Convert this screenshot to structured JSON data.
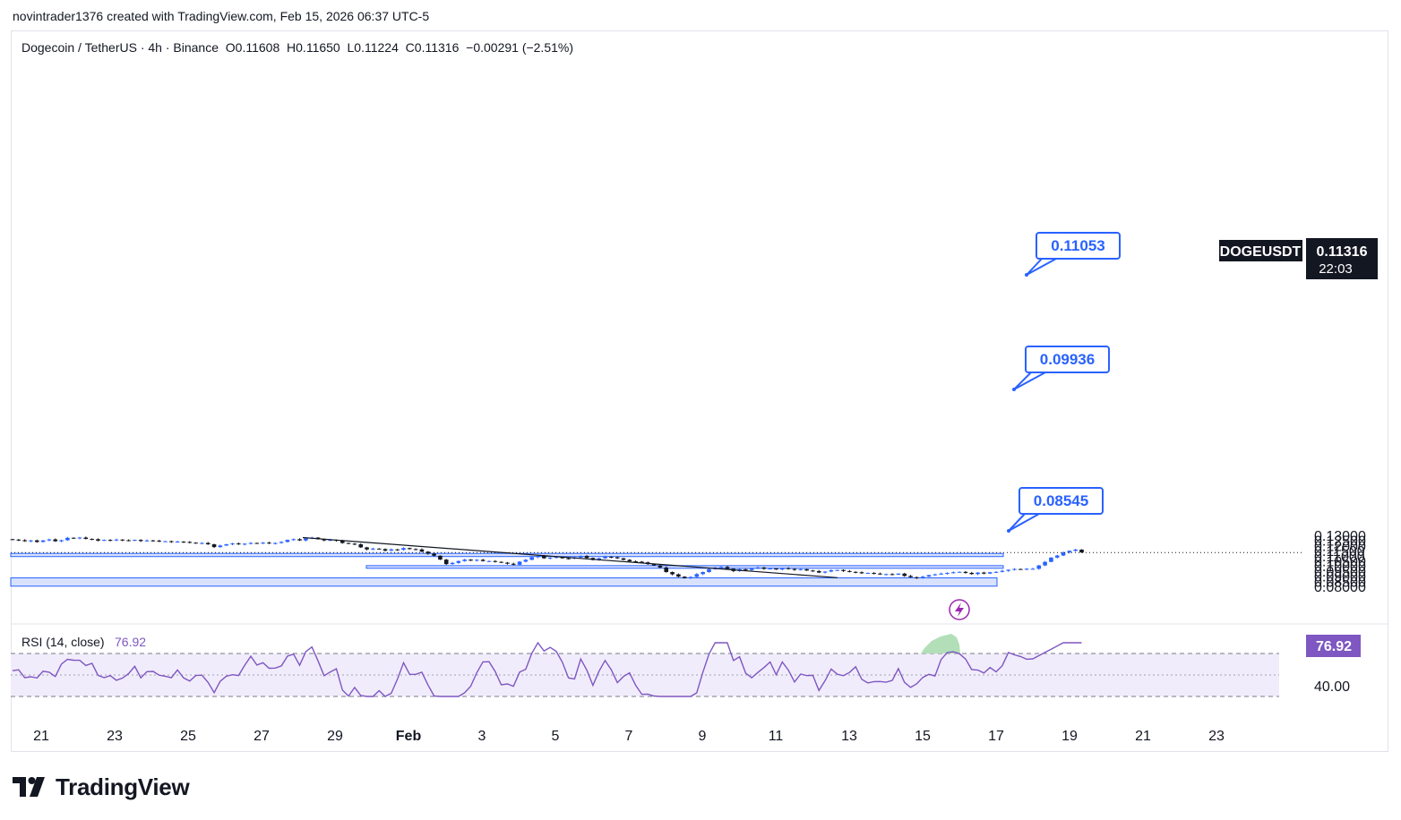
{
  "header": {
    "credit": "novintrader1376 created with TradingView.com, Feb 15, 2026 06:37 UTC-5"
  },
  "legend": {
    "symbol": "Dogecoin / TetherUS · 4h · Binance",
    "open_label": "O",
    "open": "0.11608",
    "high_label": "H",
    "high": "0.11650",
    "low_label": "L",
    "low": "0.11224",
    "close_label": "C",
    "close": "0.11316",
    "change": "−0.00291 (−2.51%)"
  },
  "price_tag": {
    "symbol": "DOGEUSDT",
    "price": "0.11316",
    "countdown": "22:03"
  },
  "rsi": {
    "label": "RSI (14, close)",
    "value": "76.92",
    "level_tick": "40.00"
  },
  "colors": {
    "up": "#2962ff",
    "down": "#131722",
    "zone_fill": "#d1ddfd",
    "zone_border": "#2962ff",
    "rsi_line": "#7e57c2",
    "rsi_band": "#f1ecfb",
    "rsi_overbought_fill": "#b2dfb8",
    "label_border": "#2962ff",
    "label_text": "#2962ff"
  },
  "brand": {
    "name": "TradingView",
    "logo_icon": "tradingview-logo-icon"
  },
  "chart_data": {
    "type": "candlestick",
    "title": "Dogecoin / TetherUS · 4h · Binance",
    "y_axis_ticks": [
      "0.13000",
      "0.12500",
      "0.12000",
      "0.11500",
      "0.11000",
      "0.10500",
      "0.10000",
      "0.09500",
      "0.09000",
      "0.08500",
      "0.08000"
    ],
    "ylim": [
      0.0765,
      0.1335
    ],
    "x_axis_ticks": [
      "21",
      "23",
      "25",
      "27",
      "29",
      "Feb",
      "3",
      "5",
      "7",
      "9",
      "11",
      "13",
      "15",
      "17",
      "19",
      "21",
      "23"
    ],
    "current_price": 0.11316,
    "zones": [
      {
        "low": 0.1092,
        "high": 0.1123,
        "label": "0.11053"
      },
      {
        "low": 0.0977,
        "high": 0.1003,
        "label": "0.09936"
      },
      {
        "low": 0.0802,
        "high": 0.0883,
        "label": "0.08545"
      }
    ],
    "trendline": {
      "from": {
        "date": "Jan 28",
        "price": 0.1278
      },
      "to": {
        "date": "Feb 11",
        "price": 0.0885
      }
    },
    "closes": [
      0.1258,
      0.1252,
      0.1242,
      0.125,
      0.1235,
      0.125,
      0.126,
      0.1242,
      0.1252,
      0.1276,
      0.127,
      0.1278,
      0.1265,
      0.1262,
      0.1248,
      0.1255,
      0.125,
      0.1258,
      0.1252,
      0.1248,
      0.1255,
      0.1244,
      0.125,
      0.1248,
      0.124,
      0.1242,
      0.1235,
      0.1238,
      0.1235,
      0.1228,
      0.1222,
      0.1225,
      0.1212,
      0.1185,
      0.12,
      0.1212,
      0.122,
      0.1212,
      0.1218,
      0.1225,
      0.1222,
      0.1228,
      0.122,
      0.1225,
      0.1235,
      0.1255,
      0.1262,
      0.125,
      0.127,
      0.1278,
      0.1262,
      0.125,
      0.1255,
      0.1248,
      0.1225,
      0.1218,
      0.1212,
      0.1182,
      0.1162,
      0.117,
      0.1165,
      0.115,
      0.1162,
      0.1158,
      0.1175,
      0.1165,
      0.1162,
      0.114,
      0.112,
      0.11,
      0.1062,
      0.1018,
      0.103,
      0.1048,
      0.1062,
      0.1052,
      0.106,
      0.1048,
      0.1048,
      0.104,
      0.1032,
      0.1022,
      0.1012,
      0.1042,
      0.106,
      0.1085,
      0.1098,
      0.1075,
      0.108,
      0.1088,
      0.1075,
      0.1072,
      0.1082,
      0.1098,
      0.1078,
      0.1058,
      0.1075,
      0.109,
      0.1085,
      0.1075,
      0.106,
      0.1045,
      0.1042,
      0.1035,
      0.1018,
      0.1005,
      0.0985,
      0.094,
      0.0918,
      0.0895,
      0.088,
      0.0892,
      0.092,
      0.094,
      0.0968,
      0.0985,
      0.099,
      0.0972,
      0.095,
      0.0968,
      0.096,
      0.0975,
      0.0985,
      0.0972,
      0.0975,
      0.0965,
      0.0978,
      0.097,
      0.0962,
      0.0968,
      0.0955,
      0.095,
      0.0935,
      0.0945,
      0.0958,
      0.096,
      0.095,
      0.0942,
      0.0938,
      0.0928,
      0.0932,
      0.0925,
      0.0918,
      0.092,
      0.0915,
      0.0925,
      0.0902,
      0.089,
      0.0882,
      0.0895,
      0.091,
      0.0918,
      0.0925,
      0.0932,
      0.0938,
      0.0942,
      0.0932,
      0.092,
      0.0935,
      0.0925,
      0.0938,
      0.0942,
      0.0952,
      0.0962,
      0.097,
      0.0968,
      0.0972,
      0.0972,
      0.1005,
      0.104,
      0.1082,
      0.1102,
      0.1132,
      0.1148,
      0.116,
      0.1132
    ]
  }
}
